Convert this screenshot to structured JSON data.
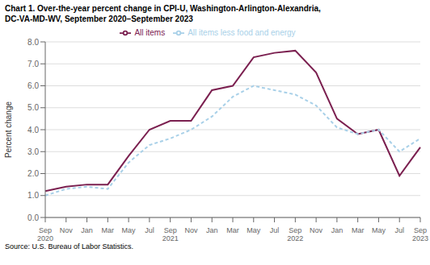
{
  "chart_data": {
    "type": "line",
    "title": "Chart 1. Over-the-year percent change in CPI-U, Washington-Arlington-Alexandria,",
    "subtitle": "DC-VA-MD-WV,  September 2020–September 2023",
    "y_label": "Percent change",
    "annotations": [
      "Source: U.S. Bureau of Labor Statistics."
    ],
    "categories": [
      "Sep\n2020",
      "Nov",
      "Jan",
      "Mar",
      "May",
      "Jul",
      "Sep\n2021",
      "Nov",
      "Jan",
      "Mar",
      "May",
      "Jul",
      "Sep\n2022",
      "Nov",
      "Jan",
      "Mar",
      "May",
      "Jul",
      "Sep\n2023"
    ],
    "series": [
      {
        "name": "All items",
        "color": "#7b2050",
        "line_style": "solid",
        "values": [
          1.2,
          1.4,
          1.5,
          1.5,
          2.8,
          4.0,
          4.4,
          4.4,
          5.8,
          6.0,
          7.3,
          7.5,
          7.6,
          6.6,
          4.5,
          3.8,
          4.0,
          1.9,
          3.2
        ]
      },
      {
        "name": "All items less food and energy",
        "color": "#a8d0e8",
        "line_style": "dashed",
        "values": [
          1.0,
          1.3,
          1.4,
          1.3,
          2.5,
          3.3,
          3.6,
          4.0,
          4.6,
          5.5,
          6.0,
          5.8,
          5.6,
          5.1,
          4.1,
          3.8,
          4.0,
          3.0,
          3.6
        ]
      }
    ],
    "ylim": [
      0.0,
      8.0
    ],
    "yticks": [
      {
        "value": 0.0,
        "label": "0.0"
      },
      {
        "value": 1.0,
        "label": "1.0"
      },
      {
        "value": 2.0,
        "label": "2.0"
      },
      {
        "value": 3.0,
        "label": "3.0"
      },
      {
        "value": 4.0,
        "label": "4.0"
      },
      {
        "value": 5.0,
        "label": "5.0"
      },
      {
        "value": 6.0,
        "label": "6.0"
      },
      {
        "value": 7.0,
        "label": "7.0"
      },
      {
        "value": 8.0,
        "label": "8.0"
      }
    ],
    "grid": "y",
    "legend": "top"
  }
}
